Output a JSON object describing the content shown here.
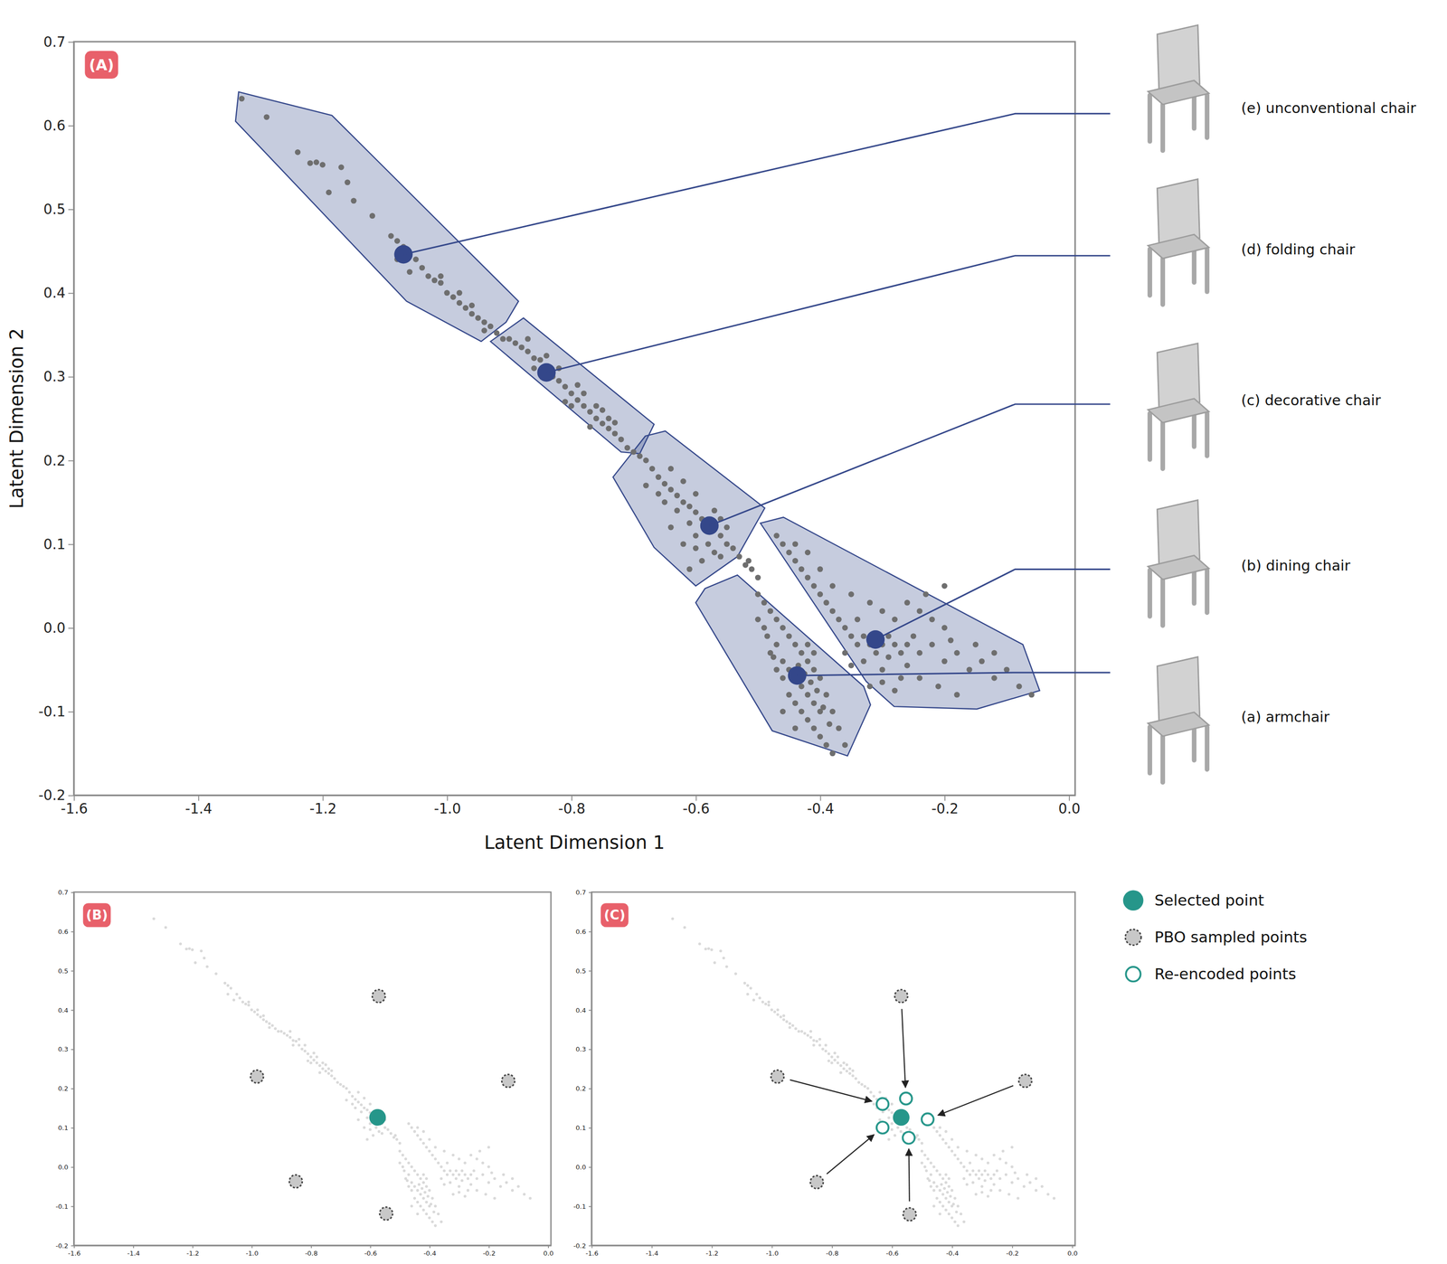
{
  "chart_data": [
    {
      "type": "scatter",
      "title": "(A)",
      "x_label": "Latent Dimension 1",
      "y_label": "Latent Dimension 2",
      "xlim": [
        -1.6,
        0.01
      ],
      "ylim": [
        -0.2,
        0.7
      ],
      "xticks": [
        -1.6,
        -1.4,
        -1.2,
        {
          "value": -1,
          "label": "-1.0"
        },
        -0.8,
        -0.6,
        -0.4,
        -0.2,
        {
          "value": 0,
          "label": "0.0"
        }
      ],
      "yticks": [
        -0.2,
        -0.1,
        {
          "value": 0,
          "label": "0.0"
        },
        0.1,
        0.2,
        0.3,
        0.4,
        0.5,
        0.6,
        0.7
      ],
      "series": [
        {
          "color": "#6e6e6e",
          "x": [
            -1.33,
            -1.29,
            -1.24,
            -1.22,
            -1.2,
            -1.21,
            -1.17,
            -1.16,
            -1.15,
            -1.19,
            -1.12,
            -1.09,
            -1.08,
            -1.07,
            -1.05,
            -1.04,
            -1.03,
            -1.02,
            -1.01,
            -1.0,
            -0.99,
            -0.98,
            -0.97,
            -0.96,
            -0.95,
            -0.94,
            -0.93,
            -0.92,
            -1.01,
            -0.98,
            -0.96,
            -0.94,
            -0.91,
            -1.08,
            -1.06,
            -0.9,
            -0.89,
            -0.88,
            -0.87,
            -0.86,
            -0.85,
            -0.84,
            -0.83,
            -0.82,
            -0.81,
            -0.8,
            -0.79,
            -0.78,
            -0.77,
            -0.76,
            -0.75,
            -0.74,
            -0.73,
            -0.72,
            -0.86,
            -0.84,
            -0.82,
            -0.8,
            -0.78,
            -0.76,
            -0.75,
            -0.74,
            -0.73,
            -0.77,
            -0.79,
            -0.81,
            -0.87,
            -0.71,
            -0.7,
            -0.69,
            -0.68,
            -0.67,
            -0.66,
            -0.65,
            -0.64,
            -0.63,
            -0.62,
            -0.61,
            -0.6,
            -0.59,
            -0.58,
            -0.57,
            -0.56,
            -0.55,
            -0.54,
            -0.65,
            -0.63,
            -0.61,
            -0.6,
            -0.58,
            -0.57,
            -0.6,
            -0.62,
            -0.66,
            -0.68,
            -0.64,
            -0.59,
            -0.61,
            -0.56,
            -0.55,
            -0.57,
            -0.62,
            -0.64,
            -0.6,
            -0.56,
            -0.53,
            -0.52,
            -0.51,
            -0.5,
            -0.515,
            -0.5,
            -0.49,
            -0.48,
            -0.47,
            -0.46,
            -0.45,
            -0.44,
            -0.43,
            -0.42,
            -0.41,
            -0.47,
            -0.46,
            -0.45,
            -0.44,
            -0.43,
            -0.42,
            -0.41,
            -0.4,
            -0.44,
            -0.43,
            -0.42,
            -0.41,
            -0.4,
            -0.39,
            -0.38,
            -0.45,
            -0.46,
            -0.47,
            -0.48,
            -0.49,
            -0.42,
            -0.41,
            -0.4,
            -0.39,
            -0.38,
            -0.37,
            -0.36,
            -0.44,
            -0.46,
            -0.5,
            -0.485,
            -0.475,
            -0.435,
            -0.425,
            -0.415,
            -0.405,
            -0.395,
            -0.385,
            -0.47,
            -0.46,
            -0.45,
            -0.44,
            -0.43,
            -0.42,
            -0.41,
            -0.4,
            -0.39,
            -0.38,
            -0.37,
            -0.36,
            -0.35,
            -0.34,
            -0.33,
            -0.32,
            -0.31,
            -0.3,
            -0.29,
            -0.28,
            -0.27,
            -0.26,
            -0.25,
            -0.24,
            -0.22,
            -0.2,
            -0.18,
            -0.16,
            -0.14,
            -0.12,
            -0.1,
            -0.08,
            -0.06,
            -0.3,
            -0.28,
            -0.26,
            -0.24,
            -0.22,
            -0.2,
            -0.32,
            -0.34,
            -0.36,
            -0.33,
            -0.3,
            -0.27,
            -0.24,
            -0.21,
            -0.18,
            -0.35,
            -0.38,
            -0.4,
            -0.42,
            -0.44,
            -0.26,
            -0.29,
            -0.31,
            -0.35,
            -0.15,
            -0.12,
            -0.19,
            -0.23,
            -0.2,
            -0.3,
            -0.32,
            -0.28
          ],
          "values": [
            0.632,
            0.61,
            0.568,
            0.555,
            0.553,
            0.556,
            0.55,
            0.532,
            0.51,
            0.52,
            0.492,
            0.468,
            0.462,
            0.455,
            0.44,
            0.43,
            0.42,
            0.415,
            0.412,
            0.4,
            0.395,
            0.388,
            0.382,
            0.375,
            0.37,
            0.365,
            0.36,
            0.352,
            0.42,
            0.4,
            0.385,
            0.355,
            0.345,
            0.44,
            0.425,
            0.345,
            0.34,
            0.335,
            0.33,
            0.322,
            0.32,
            0.31,
            0.3,
            0.295,
            0.288,
            0.28,
            0.272,
            0.265,
            0.258,
            0.25,
            0.244,
            0.238,
            0.232,
            0.225,
            0.31,
            0.325,
            0.31,
            0.265,
            0.28,
            0.265,
            0.26,
            0.25,
            0.245,
            0.24,
            0.29,
            0.27,
            0.345,
            0.215,
            0.21,
            0.205,
            0.2,
            0.19,
            0.18,
            0.172,
            0.165,
            0.158,
            0.15,
            0.145,
            0.138,
            0.13,
            0.125,
            0.118,
            0.11,
            0.1,
            0.095,
            0.15,
            0.14,
            0.125,
            0.11,
            0.1,
            0.09,
            0.16,
            0.175,
            0.16,
            0.17,
            0.19,
            0.08,
            0.07,
            0.13,
            0.12,
            0.14,
            0.1,
            0.12,
            0.095,
            0.085,
            0.085,
            0.075,
            0.07,
            0.06,
            0.08,
            0.04,
            0.03,
            0.02,
            0.01,
            0.0,
            -0.01,
            -0.02,
            -0.03,
            -0.04,
            -0.05,
            -0.02,
            -0.04,
            -0.05,
            -0.06,
            -0.07,
            -0.08,
            -0.09,
            -0.1,
            -0.09,
            -0.1,
            -0.11,
            -0.12,
            -0.13,
            -0.14,
            -0.15,
            -0.08,
            -0.06,
            -0.05,
            -0.03,
            0.0,
            -0.02,
            -0.03,
            -0.06,
            -0.08,
            -0.1,
            -0.12,
            -0.14,
            -0.12,
            -0.1,
            0.01,
            -0.01,
            -0.035,
            -0.045,
            -0.055,
            -0.065,
            -0.075,
            -0.095,
            -0.115,
            0.11,
            0.1,
            0.09,
            0.08,
            0.07,
            0.06,
            0.05,
            0.04,
            0.03,
            0.02,
            0.01,
            0.0,
            -0.01,
            -0.02,
            -0.01,
            -0.02,
            -0.01,
            -0.02,
            -0.01,
            -0.02,
            -0.03,
            -0.02,
            -0.01,
            -0.03,
            -0.02,
            -0.04,
            -0.03,
            -0.05,
            -0.04,
            -0.06,
            -0.05,
            -0.07,
            -0.08,
            0.02,
            0.01,
            0.03,
            0.02,
            0.01,
            0.0,
            0.03,
            0.01,
            -0.03,
            -0.04,
            -0.05,
            -0.06,
            -0.06,
            -0.07,
            -0.08,
            0.04,
            0.05,
            0.07,
            0.09,
            0.1,
            -0.045,
            -0.035,
            -0.03,
            -0.045,
            -0.02,
            -0.03,
            -0.015,
            0.04,
            0.05,
            -0.065,
            -0.07,
            -0.075
          ]
        }
      ],
      "regions": [
        {
          "label": "(a) armchair",
          "color": "#34478a",
          "center": [
            -0.437,
            -0.057
          ],
          "hull_x": [
            -0.585,
            -0.533,
            -0.33,
            -0.319,
            -0.356,
            -0.477,
            -0.6
          ],
          "hull_y": [
            0.047,
            0.063,
            -0.07,
            -0.092,
            -0.153,
            -0.123,
            0.03
          ]
        },
        {
          "label": "(b) dining chair",
          "color": "#34478a",
          "center": [
            -0.311,
            -0.014
          ],
          "hull_x": [
            -0.496,
            -0.459,
            -0.074,
            -0.047,
            -0.148,
            -0.281,
            -0.326
          ],
          "hull_y": [
            0.125,
            0.132,
            -0.02,
            -0.075,
            -0.097,
            -0.094,
            -0.064
          ]
        },
        {
          "label": "(c) decorative chair",
          "color": "#34478a",
          "center": [
            -0.578,
            0.122
          ],
          "hull_x": [
            -0.681,
            -0.649,
            -0.489,
            -0.533,
            -0.6,
            -0.667,
            -0.733
          ],
          "hull_y": [
            0.229,
            0.235,
            0.143,
            0.085,
            0.05,
            0.096,
            0.18
          ]
        },
        {
          "label": "(d) folding chair",
          "color": "#34478a",
          "center": [
            -0.84,
            0.305
          ],
          "hull_x": [
            -0.93,
            -0.877,
            -0.667,
            -0.69,
            -0.72
          ],
          "hull_y": [
            0.342,
            0.37,
            0.243,
            0.208,
            0.21
          ]
        },
        {
          "label": "(e) unconventional chair",
          "color": "#34478a",
          "center": [
            -1.07,
            0.446
          ],
          "hull_x": [
            -1.335,
            -1.185,
            -0.885,
            -0.905,
            -0.945,
            -1.065,
            -1.34
          ],
          "hull_y": [
            0.64,
            0.612,
            0.39,
            0.365,
            0.342,
            0.39,
            0.605
          ]
        }
      ]
    },
    {
      "type": "scatter",
      "title": "(B)",
      "xlim": [
        -1.6,
        0.01
      ],
      "ylim": [
        -0.2,
        0.7
      ],
      "xticks": [
        -1.6,
        -1.4,
        -1.2,
        {
          "value": -1,
          "label": "-1.0"
        },
        -0.8,
        -0.6,
        -0.4,
        -0.2,
        {
          "value": 0,
          "label": "0.0"
        }
      ],
      "yticks": [
        -0.2,
        -0.1,
        {
          "value": 0,
          "label": "0.0"
        },
        0.1,
        0.2,
        0.3,
        0.4,
        0.5,
        0.6,
        0.7
      ],
      "series": [
        {
          "color": "#26968a",
          "marker": "filled",
          "x": [
            -0.575
          ],
          "values": [
            0.126
          ]
        },
        {
          "color": "#c8c8c8",
          "marker": "dashed",
          "x": [
            -0.571,
            -0.982,
            -0.134,
            -0.851,
            -0.546
          ],
          "values": [
            0.435,
            0.23,
            0.219,
            -0.037,
            -0.119
          ]
        }
      ]
    },
    {
      "type": "scatter",
      "title": "(C)",
      "legend": "right",
      "xlim": [
        -1.6,
        0.01
      ],
      "ylim": [
        -0.2,
        0.7
      ],
      "xticks": [
        -1.6,
        -1.4,
        -1.2,
        {
          "value": -1,
          "label": "-1.0"
        },
        -0.8,
        -0.6,
        -0.4,
        -0.2,
        {
          "value": 0,
          "label": "0.0"
        }
      ],
      "yticks": [
        -0.2,
        -0.1,
        {
          "value": 0,
          "label": "0.0"
        },
        0.1,
        0.2,
        0.3,
        0.4,
        0.5,
        0.6,
        0.7
      ],
      "series": [
        {
          "name": "Selected point",
          "color": "#26968a",
          "marker": "filled",
          "x": [
            -0.569
          ],
          "values": [
            0.126
          ]
        },
        {
          "name": "PBO sampled points",
          "color": "#c8c8c8",
          "marker": "dashed",
          "x": [
            -0.569,
            -0.981,
            -0.156,
            -0.85,
            -0.541
          ],
          "values": [
            0.435,
            0.23,
            0.219,
            -0.039,
            -0.121
          ]
        },
        {
          "name": "Re-encoded points",
          "color": "#26968a",
          "marker": "hollow",
          "x": [
            -0.553,
            -0.631,
            -0.481,
            -0.631,
            -0.544
          ],
          "values": [
            0.174,
            0.16,
            0.121,
            0.1,
            0.074
          ]
        }
      ]
    }
  ]
}
